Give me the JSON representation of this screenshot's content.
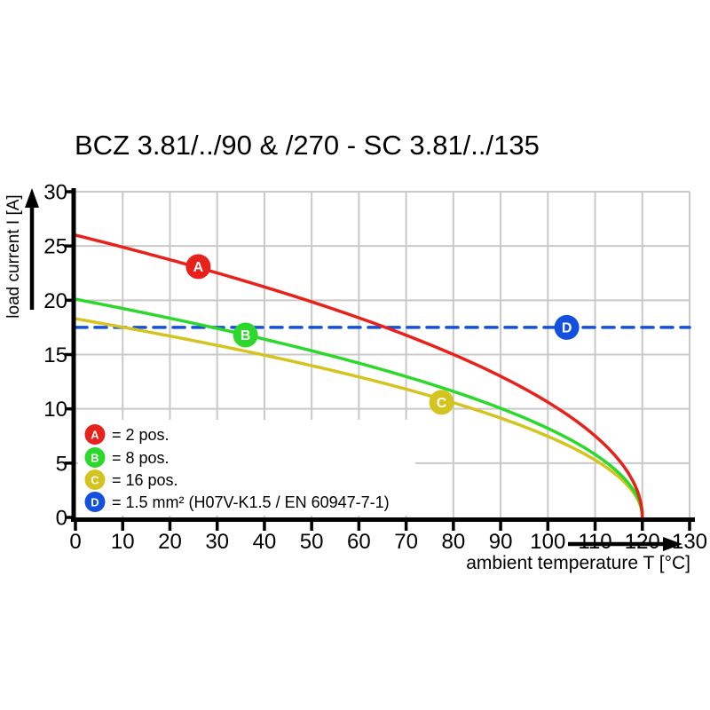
{
  "title": "BCZ 3.81/../90 & /270 - SC 3.81/../135",
  "chart_data": {
    "type": "line",
    "title": "BCZ 3.81/../90 & /270 - SC 3.81/../135",
    "xlabel": "ambient temperature T [°C]",
    "ylabel": "load current I [A]",
    "xlim": [
      0,
      130
    ],
    "ylim": [
      0,
      30
    ],
    "x_ticks": [
      0,
      10,
      20,
      30,
      40,
      50,
      60,
      70,
      80,
      90,
      100,
      110,
      120,
      130
    ],
    "y_ticks": [
      0,
      5,
      10,
      15,
      20,
      25,
      30
    ],
    "grid": true,
    "legend_position": "lower-left-inside",
    "series": [
      {
        "letter": "A",
        "label": "2 pos.",
        "color": "#e8211a",
        "style": "solid",
        "model": {
          "type": "sqrt_derating",
          "i0": 26.0,
          "t_zero": 120
        },
        "points": [
          [
            0,
            26.0
          ],
          [
            10,
            24.9
          ],
          [
            20,
            23.7
          ],
          [
            30,
            22.5
          ],
          [
            40,
            21.2
          ],
          [
            50,
            19.9
          ],
          [
            60,
            18.4
          ],
          [
            70,
            16.8
          ],
          [
            80,
            15.0
          ],
          [
            90,
            13.0
          ],
          [
            100,
            10.6
          ],
          [
            110,
            7.5
          ],
          [
            120,
            0
          ]
        ],
        "marker": {
          "letter": "A",
          "t": 26,
          "i": 23.1
        }
      },
      {
        "letter": "B",
        "label": "8 pos.",
        "color": "#2bd82b",
        "style": "solid",
        "model": {
          "type": "sqrt_derating",
          "i0": 20.1,
          "t_zero": 120
        },
        "points": [
          [
            0,
            20.1
          ],
          [
            10,
            19.3
          ],
          [
            20,
            18.4
          ],
          [
            30,
            17.4
          ],
          [
            40,
            16.4
          ],
          [
            50,
            15.3
          ],
          [
            60,
            14.2
          ],
          [
            70,
            13.0
          ],
          [
            80,
            11.6
          ],
          [
            90,
            10.0
          ],
          [
            100,
            8.2
          ],
          [
            110,
            5.8
          ],
          [
            120,
            0
          ]
        ],
        "marker": {
          "letter": "B",
          "t": 36,
          "i": 16.8
        }
      },
      {
        "letter": "C",
        "label": "16 pos.",
        "color": "#d4c41f",
        "style": "solid",
        "model": {
          "type": "sqrt_derating",
          "i0": 18.3,
          "t_zero": 120
        },
        "points": [
          [
            0,
            18.3
          ],
          [
            10,
            17.5
          ],
          [
            20,
            16.7
          ],
          [
            30,
            15.9
          ],
          [
            40,
            14.9
          ],
          [
            50,
            14.0
          ],
          [
            60,
            12.9
          ],
          [
            70,
            11.8
          ],
          [
            80,
            10.6
          ],
          [
            90,
            9.1
          ],
          [
            100,
            7.5
          ],
          [
            110,
            5.2
          ],
          [
            120,
            0
          ]
        ],
        "marker": {
          "letter": "C",
          "t": 77.5,
          "i": 10.6
        }
      },
      {
        "letter": "D",
        "label": "1.5 mm² (H07V-K1.5 / EN 60947-7-1)",
        "color": "#1450e0",
        "style": "dashed",
        "model": {
          "type": "constant",
          "i": 17.5,
          "t_from": 0,
          "t_to": 130
        },
        "points": [
          [
            0,
            17.5
          ],
          [
            130,
            17.5
          ]
        ],
        "marker": {
          "letter": "D",
          "t": 104,
          "i": 17.5
        }
      }
    ]
  },
  "legend": {
    "items": [
      {
        "letter": "A",
        "label": "= 2 pos.",
        "color": "#e8211a"
      },
      {
        "letter": "B",
        "label": "= 8 pos.",
        "color": "#2bd82b"
      },
      {
        "letter": "C",
        "label": "= 16 pos.",
        "color": "#d4c41f"
      },
      {
        "letter": "D",
        "label": "= 1.5 mm² (H07V-K1.5 / EN 60947-7-1)",
        "color": "#1450e0"
      }
    ]
  },
  "colors": {
    "grid": "#c9c9c9",
    "axis": "#000000",
    "marker_letter": "#ffffff",
    "background": "#ffffff"
  }
}
